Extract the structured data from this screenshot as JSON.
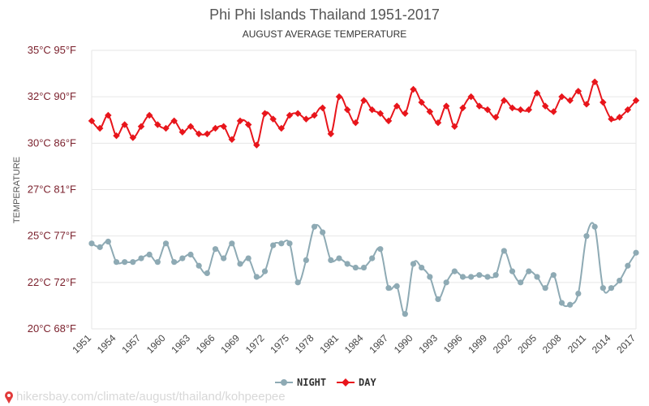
{
  "chart_data": {
    "type": "line",
    "title": "Phi Phi Islands Thailand 1951-2017",
    "subtitle": "AUGUST AVERAGE TEMPERATURE",
    "ylabel": "TEMPERATURE",
    "ylim": [
      20,
      35
    ],
    "yticks": [
      {
        "value": 20,
        "label": "20°C 68°F"
      },
      {
        "value": 22.5,
        "label": "22°C 72°F"
      },
      {
        "value": 25,
        "label": "25°C 77°F"
      },
      {
        "value": 27.5,
        "label": "27°C 81°F"
      },
      {
        "value": 30,
        "label": "30°C 86°F"
      },
      {
        "value": 32.5,
        "label": "32°C 90°F"
      },
      {
        "value": 35,
        "label": "35°C 95°F"
      }
    ],
    "x": [
      1951,
      1952,
      1953,
      1954,
      1955,
      1956,
      1957,
      1958,
      1959,
      1960,
      1961,
      1962,
      1963,
      1964,
      1965,
      1966,
      1967,
      1968,
      1969,
      1970,
      1971,
      1972,
      1973,
      1974,
      1975,
      1976,
      1977,
      1978,
      1979,
      1980,
      1981,
      1982,
      1983,
      1984,
      1985,
      1986,
      1987,
      1988,
      1989,
      1990,
      1991,
      1992,
      1993,
      1994,
      1995,
      1996,
      1997,
      1998,
      1999,
      2000,
      2001,
      2002,
      2003,
      2004,
      2005,
      2006,
      2007,
      2008,
      2009,
      2010,
      2011,
      2012,
      2013,
      2014,
      2015,
      2016,
      2017
    ],
    "xticks": [
      "1951",
      "1954",
      "1957",
      "1960",
      "1963",
      "1966",
      "1969",
      "1972",
      "1975",
      "1978",
      "1981",
      "1984",
      "1987",
      "1990",
      "1993",
      "1996",
      "1999",
      "2002",
      "2005",
      "2008",
      "2011",
      "2014",
      "2017"
    ],
    "series": [
      {
        "name": "NIGHT",
        "color": "#8eaab4",
        "values": [
          24.6,
          24.4,
          24.7,
          23.6,
          23.6,
          23.6,
          23.8,
          24.0,
          23.6,
          24.6,
          23.6,
          23.8,
          24.0,
          23.4,
          23.0,
          24.3,
          23.8,
          24.6,
          23.5,
          23.8,
          22.8,
          23.1,
          24.5,
          24.6,
          24.6,
          22.5,
          23.7,
          25.5,
          25.2,
          23.7,
          23.8,
          23.5,
          23.3,
          23.3,
          23.8,
          24.3,
          22.2,
          22.3,
          20.8,
          23.5,
          23.3,
          22.8,
          21.6,
          22.5,
          23.1,
          22.8,
          22.8,
          22.9,
          22.8,
          22.9,
          24.2,
          23.1,
          22.5,
          23.1,
          22.8,
          22.2,
          22.9,
          21.4,
          21.3,
          21.9,
          25.0,
          25.5,
          22.2,
          22.2,
          22.6,
          23.4,
          24.1
        ]
      },
      {
        "name": "DAY",
        "color": "#e8151b",
        "values": [
          31.2,
          30.8,
          31.5,
          30.4,
          31.0,
          30.3,
          30.9,
          31.5,
          31.0,
          30.8,
          31.2,
          30.6,
          30.9,
          30.5,
          30.5,
          30.8,
          30.9,
          30.2,
          31.2,
          31.0,
          29.9,
          31.6,
          31.3,
          30.8,
          31.5,
          31.6,
          31.3,
          31.5,
          31.9,
          30.5,
          32.5,
          31.8,
          31.1,
          32.3,
          31.8,
          31.6,
          31.2,
          32.0,
          31.6,
          32.9,
          32.2,
          31.7,
          31.1,
          32.0,
          30.9,
          31.9,
          32.5,
          32.0,
          31.8,
          31.4,
          32.3,
          31.9,
          31.8,
          31.8,
          32.7,
          32.0,
          31.7,
          32.5,
          32.3,
          32.8,
          32.1,
          33.3,
          32.2,
          31.3,
          31.4,
          31.8,
          32.3
        ]
      }
    ],
    "legend_position": "bottom-center",
    "grid": true
  },
  "source_url": "hikersbay.com/climate/august/thailand/kohpeepee",
  "icons": {
    "source_icon": "map-pin-icon"
  }
}
